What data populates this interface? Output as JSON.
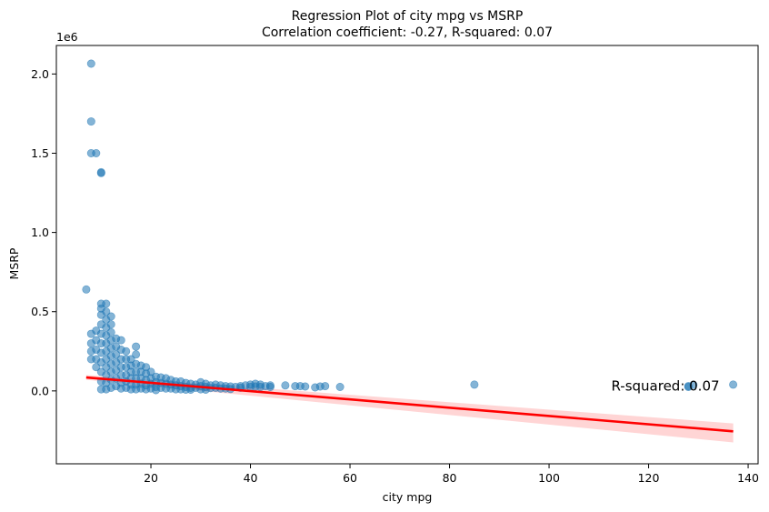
{
  "chart_data": {
    "type": "scatter",
    "title": "Regression Plot of city mpg vs MSRP",
    "subtitle": "Correlation coefficient: -0.27, R-squared: 0.07",
    "xlabel": "city mpg",
    "ylabel": "MSRP",
    "y_offset_label": "1e6",
    "xlim": [
      1,
      142
    ],
    "ylim": [
      -460000,
      2180000
    ],
    "x_ticks": [
      20,
      40,
      60,
      80,
      100,
      120,
      140
    ],
    "y_ticks": [
      0,
      500000,
      1000000,
      1500000,
      2000000
    ],
    "y_tick_labels": [
      "0.0",
      "0.5",
      "1.0",
      "1.5",
      "2.0"
    ],
    "grid": false,
    "point_color": "#1f77b4",
    "line_color": "#ff0000",
    "band_color": "#ffb3b3",
    "annotation": {
      "text": "R-squared: 0.07",
      "x": 112.5,
      "y": 32000
    },
    "regression": {
      "x": [
        7,
        137
      ],
      "y": [
        85000,
        -255000
      ],
      "ci_upper": [
        100000,
        -205000
      ],
      "ci_lower": [
        70000,
        -325000
      ]
    },
    "series": [
      {
        "points": [
          [
            7,
            640000
          ],
          [
            8,
            2065000
          ],
          [
            8,
            1700000
          ],
          [
            8,
            1500000
          ],
          [
            9,
            1500000
          ],
          [
            10,
            1380000
          ],
          [
            10,
            1375000
          ],
          [
            8,
            360000
          ],
          [
            8,
            300000
          ],
          [
            8,
            250000
          ],
          [
            8,
            200000
          ],
          [
            9,
            380000
          ],
          [
            9,
            320000
          ],
          [
            9,
            260000
          ],
          [
            9,
            200000
          ],
          [
            9,
            150000
          ],
          [
            10,
            550000
          ],
          [
            10,
            520000
          ],
          [
            10,
            480000
          ],
          [
            10,
            420000
          ],
          [
            10,
            360000
          ],
          [
            10,
            300000
          ],
          [
            10,
            240000
          ],
          [
            10,
            180000
          ],
          [
            10,
            120000
          ],
          [
            10,
            60000
          ],
          [
            10,
            10000
          ],
          [
            11,
            550000
          ],
          [
            11,
            500000
          ],
          [
            11,
            450000
          ],
          [
            11,
            400000
          ],
          [
            11,
            350000
          ],
          [
            11,
            300000
          ],
          [
            11,
            250000
          ],
          [
            11,
            200000
          ],
          [
            11,
            150000
          ],
          [
            11,
            100000
          ],
          [
            11,
            50000
          ],
          [
            11,
            10000
          ],
          [
            12,
            470000
          ],
          [
            12,
            420000
          ],
          [
            12,
            370000
          ],
          [
            12,
            320000
          ],
          [
            12,
            270000
          ],
          [
            12,
            220000
          ],
          [
            12,
            170000
          ],
          [
            12,
            120000
          ],
          [
            12,
            70000
          ],
          [
            12,
            20000
          ],
          [
            13,
            330000
          ],
          [
            13,
            280000
          ],
          [
            13,
            230000
          ],
          [
            13,
            180000
          ],
          [
            13,
            130000
          ],
          [
            13,
            80000
          ],
          [
            13,
            30000
          ],
          [
            14,
            320000
          ],
          [
            14,
            260000
          ],
          [
            14,
            200000
          ],
          [
            14,
            150000
          ],
          [
            14,
            100000
          ],
          [
            14,
            50000
          ],
          [
            14,
            15000
          ],
          [
            15,
            250000
          ],
          [
            15,
            200000
          ],
          [
            15,
            150000
          ],
          [
            15,
            100000
          ],
          [
            15,
            60000
          ],
          [
            15,
            20000
          ],
          [
            16,
            200000
          ],
          [
            16,
            160000
          ],
          [
            16,
            120000
          ],
          [
            16,
            80000
          ],
          [
            16,
            40000
          ],
          [
            16,
            10000
          ],
          [
            17,
            280000
          ],
          [
            17,
            230000
          ],
          [
            17,
            170000
          ],
          [
            17,
            120000
          ],
          [
            17,
            80000
          ],
          [
            17,
            40000
          ],
          [
            17,
            10000
          ],
          [
            18,
            160000
          ],
          [
            18,
            120000
          ],
          [
            18,
            80000
          ],
          [
            18,
            45000
          ],
          [
            18,
            15000
          ],
          [
            19,
            150000
          ],
          [
            19,
            110000
          ],
          [
            19,
            70000
          ],
          [
            19,
            35000
          ],
          [
            19,
            10000
          ],
          [
            20,
            120000
          ],
          [
            20,
            80000
          ],
          [
            20,
            45000
          ],
          [
            20,
            15000
          ],
          [
            21,
            90000
          ],
          [
            21,
            55000
          ],
          [
            21,
            25000
          ],
          [
            21,
            5000
          ],
          [
            22,
            85000
          ],
          [
            22,
            50000
          ],
          [
            22,
            20000
          ],
          [
            23,
            80000
          ],
          [
            23,
            45000
          ],
          [
            23,
            15000
          ],
          [
            24,
            70000
          ],
          [
            24,
            40000
          ],
          [
            24,
            15000
          ],
          [
            25,
            60000
          ],
          [
            25,
            35000
          ],
          [
            25,
            10000
          ],
          [
            26,
            60000
          ],
          [
            26,
            30000
          ],
          [
            26,
            10000
          ],
          [
            27,
            50000
          ],
          [
            27,
            25000
          ],
          [
            27,
            8000
          ],
          [
            28,
            45000
          ],
          [
            28,
            20000
          ],
          [
            28,
            8000
          ],
          [
            29,
            40000
          ],
          [
            29,
            20000
          ],
          [
            30,
            55000
          ],
          [
            30,
            30000
          ],
          [
            30,
            10000
          ],
          [
            31,
            45000
          ],
          [
            31,
            25000
          ],
          [
            31,
            8000
          ],
          [
            32,
            35000
          ],
          [
            32,
            18000
          ],
          [
            33,
            40000
          ],
          [
            33,
            20000
          ],
          [
            34,
            35000
          ],
          [
            34,
            15000
          ],
          [
            35,
            30000
          ],
          [
            35,
            15000
          ],
          [
            36,
            28000
          ],
          [
            36,
            12000
          ],
          [
            37,
            25000
          ],
          [
            38,
            30000
          ],
          [
            38,
            20000
          ],
          [
            39,
            35000
          ],
          [
            40,
            40000
          ],
          [
            40,
            25000
          ],
          [
            41,
            45000
          ],
          [
            41,
            28000
          ],
          [
            42,
            40000
          ],
          [
            42,
            25000
          ],
          [
            43,
            30000
          ],
          [
            44,
            35000
          ],
          [
            44,
            25000
          ],
          [
            47,
            35000
          ],
          [
            49,
            30000
          ],
          [
            50,
            30000
          ],
          [
            51,
            28000
          ],
          [
            53,
            22000
          ],
          [
            54,
            28000
          ],
          [
            55,
            30000
          ],
          [
            58,
            25000
          ],
          [
            85,
            40000
          ],
          [
            128,
            25000
          ],
          [
            128,
            30000
          ],
          [
            129,
            38000
          ],
          [
            137,
            40000
          ]
        ]
      }
    ]
  }
}
